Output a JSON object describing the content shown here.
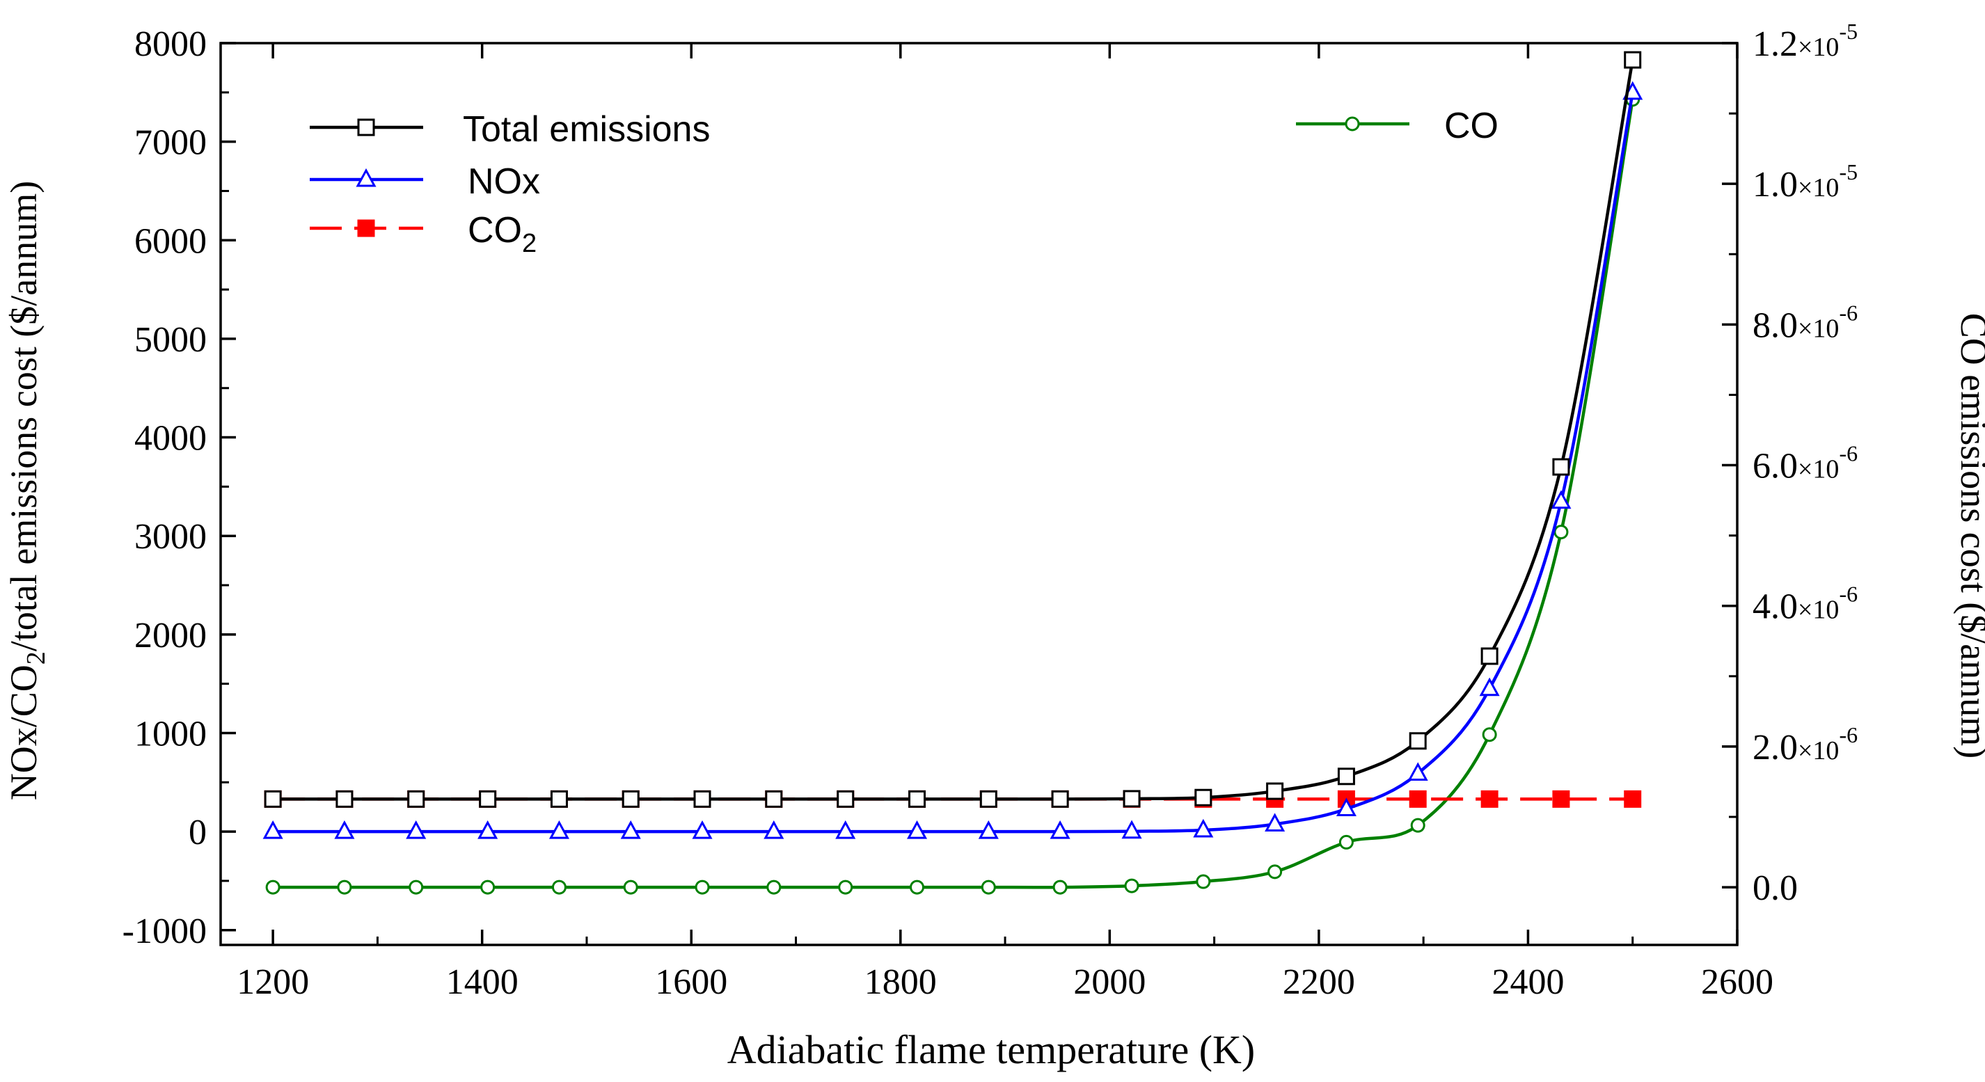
{
  "chart_data": {
    "type": "line",
    "title": "",
    "xlabel": "Adiabatic flame temperature (K)",
    "ylabel_left": {
      "pre": "NOx/CO",
      "sub": "2",
      "post": "/total emissions cost ($/annum)"
    },
    "ylabel_right": "CO emissions cost ($/annum)",
    "xlim": [
      1150,
      2600
    ],
    "ylim_left": [
      -1150,
      8000
    ],
    "ylim_right": [
      -8.2e-07,
      1.2e-05
    ],
    "x_ticks": [
      "1200",
      "1400",
      "1600",
      "1800",
      "2000",
      "2200",
      "2400",
      "2600"
    ],
    "y_left_ticks": [
      "-1000",
      "0",
      "1000",
      "2000",
      "3000",
      "4000",
      "5000",
      "6000",
      "7000",
      "8000"
    ],
    "y_right_ticks": [
      {
        "mant": "0.0",
        "times": "",
        "exp": ""
      },
      {
        "mant": "2.0",
        "times": "×10",
        "exp": "-6"
      },
      {
        "mant": "4.0",
        "times": "×10",
        "exp": "-6"
      },
      {
        "mant": "6.0",
        "times": "×10",
        "exp": "-6"
      },
      {
        "mant": "8.0",
        "times": "×10",
        "exp": "-6"
      },
      {
        "mant": "1.0",
        "times": "×10",
        "exp": "-5"
      },
      {
        "mant": "1.2",
        "times": "×10",
        "exp": "-5"
      }
    ],
    "x": [
      1200,
      1268.4,
      1336.8,
      1405.3,
      1473.7,
      1542.1,
      1610.5,
      1678.9,
      1747.4,
      1815.8,
      1884.2,
      1952.6,
      2021.1,
      2089.5,
      2157.9,
      2226.3,
      2294.7,
      2363.2,
      2431.6,
      2500
    ],
    "series": [
      {
        "name": "Total emissions",
        "axis": "left",
        "color": "#000000",
        "marker": "open-square",
        "values": [
          330,
          330,
          330,
          330,
          330,
          330,
          330,
          330,
          330,
          330,
          330,
          330,
          333,
          345,
          410,
          560,
          920,
          1780,
          3700,
          7830
        ]
      },
      {
        "name": "NOx",
        "axis": "left",
        "color": "#0000ff",
        "marker": "open-triangle",
        "values": [
          0,
          0,
          0,
          0,
          0,
          0,
          0,
          0,
          0,
          0,
          0,
          0,
          3,
          15,
          75,
          230,
          590,
          1450,
          3350,
          7500
        ]
      },
      {
        "name": "CO2",
        "axis": "left",
        "color": "#ff0000",
        "marker": "filled-square",
        "values": [
          330,
          330,
          330,
          330,
          330,
          330,
          330,
          330,
          330,
          330,
          330,
          330,
          330,
          330,
          330,
          330,
          330,
          330,
          330,
          330
        ]
      },
      {
        "name": "CO",
        "axis": "right",
        "color": "#008000",
        "marker": "open-circle",
        "values": [
          0,
          0,
          0,
          0,
          0,
          0,
          0,
          0,
          0,
          0,
          0,
          0,
          2e-08,
          8e-08,
          2.2e-07,
          6.4e-07,
          8.8e-07,
          2.17e-06,
          5.05e-06,
          1.12e-05
        ]
      }
    ],
    "legend": {
      "entries": [
        {
          "label": "Total emissions",
          "sub": ""
        },
        {
          "label": "NOx",
          "sub": ""
        },
        {
          "label": "CO",
          "sub": "2"
        }
      ],
      "right_entry": {
        "label": "CO"
      },
      "placement": "top-left and top-right"
    }
  }
}
